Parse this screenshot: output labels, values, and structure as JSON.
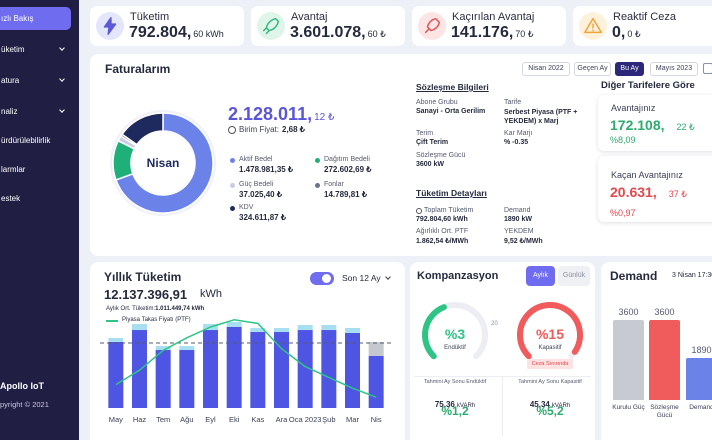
{
  "sidebar": {
    "items": [
      "ızlı Bakış",
      "üketim",
      "atura",
      "naliz",
      "ürdürülebilirlik",
      "larmlar",
      "estek"
    ],
    "brand": "Apollo IoT",
    "copyright": "pyright © 2021"
  },
  "kpis": [
    {
      "title": "Tüketim",
      "value": "792.804,",
      "unit": "60 kWh"
    },
    {
      "title": "Avantaj",
      "value": "3.601.078,",
      "unit": "60 ₺"
    },
    {
      "title": "Kaçırılan Avantaj",
      "value": "141.176,",
      "unit": "70 ₺"
    },
    {
      "title": "Reaktif Ceza",
      "value": "0,",
      "unit": "0 ₺"
    }
  ],
  "invoices": {
    "title": "Faturalarım",
    "periods": [
      "Nisan 2022",
      "Geçen Ay",
      "Bu Ay",
      "Mayıs 2023"
    ],
    "active_period": 2,
    "total": "2.128.011,",
    "total_cents": "12 ₺",
    "unit_price_label": "Birim Fiyat:",
    "unit_price": "2,68 ₺",
    "donut": {
      "type": "pie",
      "center_label": "Nisan",
      "categories": [
        "Aktif Bedel",
        "Dağıtım Bedeli",
        "Güç Bedeli",
        "Fonlar",
        "KDV"
      ],
      "values": [
        1478981.35,
        272602.69,
        37025.4,
        14789.81,
        324611.87
      ],
      "value_labels": [
        "1.478.981,35 ₺",
        "272.602,69 ₺",
        "37.025,40 ₺",
        "14.789,81 ₺",
        "324.611,87 ₺"
      ],
      "colors": [
        "#6b83e8",
        "#1fb07a",
        "#c9cde6",
        "#6b7391",
        "#1e2a5e"
      ]
    },
    "contract": {
      "title": "Sözleşme Bilgileri",
      "fields": [
        {
          "label": "Abone Grubu",
          "value": "Sanayi - Orta Gerilim"
        },
        {
          "label": "Tarife",
          "value": "Serbest Piyasa (PTF + YEKDEM) x Marj"
        },
        {
          "label": "Terim",
          "value": "Çift Terim"
        },
        {
          "label": "Kar Marjı",
          "value": "% -0.35"
        },
        {
          "label": "Sözleşme Gücü",
          "value": "3600 kW"
        }
      ]
    },
    "consumption": {
      "title": "Tüketim Detayları",
      "fields": [
        {
          "label": "Toplam Tüketim",
          "value": "792.804,60 kWh"
        },
        {
          "label": "Demand",
          "value": "1890 kW"
        },
        {
          "label": "Ağırlıklı Ort. PTF",
          "value": "1.862,54 ₺/MWh"
        },
        {
          "label": "YEKDEM",
          "value": "9,52 ₺/MWh"
        }
      ]
    },
    "tariffs": {
      "title": "Diğer Tarifelere Göre",
      "cards": [
        {
          "label": "Avantajınız",
          "value": "172.108,",
          "cents": "22 ₺",
          "percent": "%8,09",
          "color": "#2eaa6e"
        },
        {
          "label": "Kaçan Avantajınız",
          "value": "20.631,",
          "cents": "37 ₺",
          "percent": "%0,97",
          "color": "#e5484d"
        }
      ]
    }
  },
  "yearly": {
    "title": "Yıllık Tüketim",
    "total": "12.137.396,91",
    "unit": "kWh",
    "range": "Son 12 Ay",
    "chart": {
      "type": "bar",
      "stacked": true,
      "categories": [
        "May",
        "Haz",
        "Tem",
        "Ağu",
        "Eyl",
        "Eki",
        "Kas",
        "Ara",
        "Oca 2023",
        "Şub",
        "Mar",
        "Nis"
      ],
      "series": [
        {
          "color": "#4f55e3",
          "values": [
            1027000,
            1213000,
            902000,
            902000,
            1213000,
            1260000,
            1182000,
            1182000,
            1213000,
            1213000,
            1167000,
            809000
          ]
        },
        {
          "color": "#a8dff0",
          "colors": [
            "#a8dff0",
            "#a8dff0",
            "#a8dff0",
            "#a8dff0",
            "#a8dff0",
            "#a8dff0",
            "#a8dff0",
            "#a8dff0",
            "#a8dff0",
            "#a8dff0",
            "#a8dff0",
            "#c6c8cf"
          ],
          "values": [
            62000,
            93000,
            62000,
            62000,
            93000,
            78000,
            62000,
            62000,
            78000,
            78000,
            78000,
            218000
          ]
        },
        {
          "name": "Piyasa Takas Fiyatı (PTF)",
          "type": "line",
          "axis": "y2",
          "color": "#2ec486",
          "values": [
            1300,
            2100,
            3200,
            3900,
            4500,
            4900,
            4700,
            3300,
            2300,
            1700,
            1100,
            600
          ]
        }
      ],
      "ylim": [
        0,
        1400000
      ],
      "y2lim": [
        0,
        5000
      ],
      "average": {
        "label": "Aylık Ort. Tüketim:",
        "value": 1011449.74,
        "value_label": "1.011.449,74 kWh"
      }
    }
  },
  "compensation": {
    "title": "Kompanzasyon",
    "modes": [
      "Aylık",
      "Günlük"
    ],
    "active_mode": 0,
    "gauges": [
      {
        "value": "%3",
        "label": "Endüktif",
        "limit": "20",
        "color": "#2ec486"
      },
      {
        "value": "%15",
        "label": "Kapasitif",
        "badge": "Ceza Sınırında",
        "color": "#f05b5b"
      }
    ],
    "forecasts": [
      {
        "label": "Tahmini Ay Sonu Endüktif",
        "value": "75,36",
        "unit": "kVARh",
        "percent": "%1,2"
      },
      {
        "label": "Tahmini Ay Sonu Kapasitif",
        "value": "45,34",
        "unit": "kVARh",
        "percent": "%5,2"
      }
    ]
  },
  "demand": {
    "title": "Demand",
    "time": "3 Nisan 17:30",
    "chart": {
      "type": "bar",
      "categories": [
        "Kurulu Güç",
        "Sözleşme Gücü",
        "Demand"
      ],
      "values": [
        3600,
        3600,
        1890
      ],
      "colors": [
        "#c8cad3",
        "#f05b5b",
        "#6b83e8"
      ]
    }
  }
}
